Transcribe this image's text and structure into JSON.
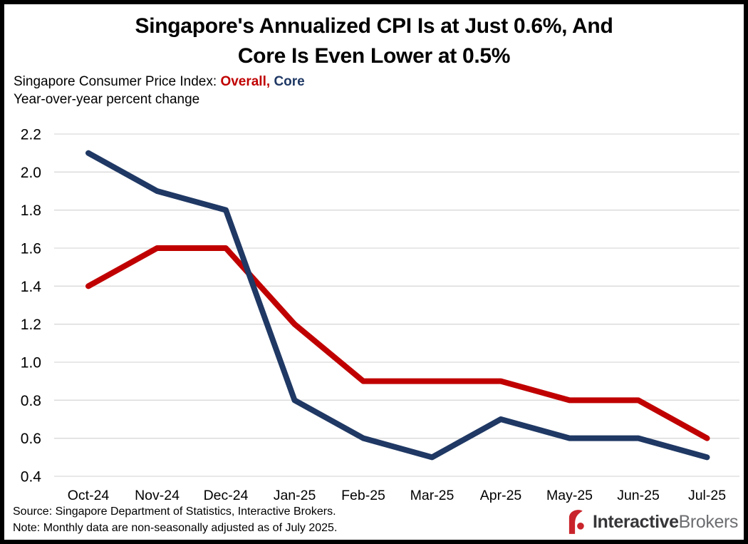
{
  "header": {
    "title_line1": "Singapore's Annualized CPI Is at Just 0.6%, And",
    "title_line2": "Core Is Even Lower at 0.5%",
    "subtitle_prefix": "Singapore Consumer Price Index: ",
    "series1_label": "Overall",
    "subtitle_separator": ", ",
    "series2_label": "Core",
    "units_line": "Year-over-year percent change"
  },
  "chart_data": {
    "type": "line",
    "title": "Singapore's Annualized CPI Is at Just 0.6%, And Core Is Even Lower at 0.5%",
    "subtitle": "Singapore Consumer Price Index: Overall, Core",
    "ylabel": "Year-over-year percent change",
    "xlabel": "",
    "categories": [
      "Oct-24",
      "Nov-24",
      "Dec-24",
      "Jan-25",
      "Feb-25",
      "Mar-25",
      "Apr-25",
      "May-25",
      "Jun-25",
      "Jul-25"
    ],
    "series": [
      {
        "name": "Overall",
        "color": "#C00000",
        "values": [
          1.4,
          1.6,
          1.6,
          1.2,
          0.9,
          0.9,
          0.9,
          0.8,
          0.8,
          0.6
        ]
      },
      {
        "name": "Core",
        "color": "#1F3864",
        "values": [
          2.1,
          1.9,
          1.8,
          0.8,
          0.6,
          0.5,
          0.7,
          0.6,
          0.6,
          0.5
        ]
      }
    ],
    "ylim": [
      0.4,
      2.2
    ],
    "ytick_step": 0.2,
    "grid": true,
    "gridline_color": "#D9D9D9",
    "legend_position": "inline-subtitle",
    "line_width": 8
  },
  "footer": {
    "source": "Source: Singapore Department of Statistics, Interactive Brokers.",
    "note": "Note: Monthly data are non-seasonally adjusted as of July 2025.",
    "logo_bold": "Interactive",
    "logo_light": "Brokers",
    "logo_icon_color": "#C9242B",
    "logo_bold_color": "#363639",
    "logo_light_color": "#6D6E71"
  }
}
